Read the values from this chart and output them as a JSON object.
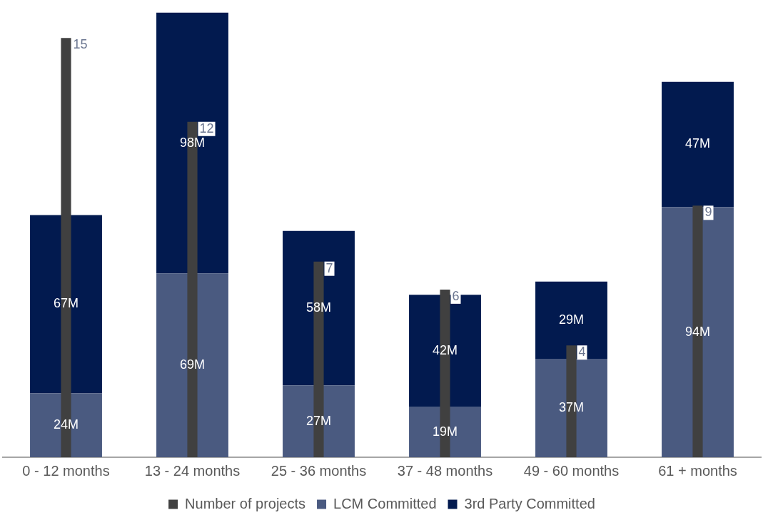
{
  "chart_data": {
    "type": "bar",
    "stacked": true,
    "categories": [
      "0 - 12 months",
      "13 - 24 months",
      "25 - 36 months",
      "37 - 48 months",
      "49 - 60 months",
      "61 + months"
    ],
    "series": [
      {
        "name": "Number of projects",
        "color": "#404040",
        "axis": "y2",
        "values": [
          15,
          12,
          7,
          6,
          4,
          9
        ],
        "value_labels": [
          "15",
          "12",
          "7",
          "6",
          "4",
          "9"
        ]
      },
      {
        "name": "LCM Committed",
        "color": "#4a5a80",
        "values": [
          24,
          69,
          27,
          19,
          37,
          94
        ],
        "value_labels": [
          "24M",
          "69M",
          "27M",
          "19M",
          "37M",
          "94M"
        ]
      },
      {
        "name": "3rd Party Committed",
        "color": "#021a4f",
        "values": [
          67,
          98,
          58,
          42,
          29,
          47
        ],
        "value_labels": [
          "67M",
          "98M",
          "58M",
          "42M",
          "29M",
          "47M"
        ]
      }
    ],
    "ylim": [
      0,
      168
    ],
    "tick_labels": "x",
    "grid": false,
    "legend": "bottom"
  }
}
